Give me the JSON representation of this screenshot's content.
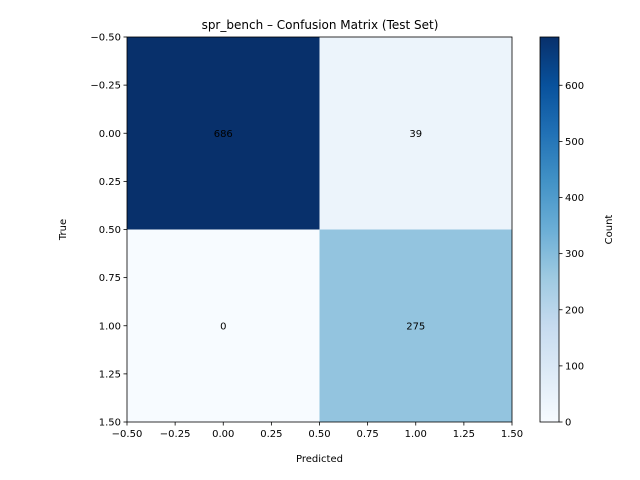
{
  "chart_data": {
    "type": "heatmap",
    "title": "spr_bench – Confusion Matrix (Test Set)",
    "xlabel": "Predicted",
    "ylabel": "True",
    "matrix": [
      [
        686,
        39
      ],
      [
        0,
        275
      ]
    ],
    "xlim": [
      -0.5,
      1.5
    ],
    "ylim": [
      1.5,
      -0.5
    ],
    "x_ticks": [
      "−0.50",
      "−0.25",
      "0.00",
      "0.25",
      "0.50",
      "0.75",
      "1.00",
      "1.25",
      "1.50"
    ],
    "y_ticks": [
      "−0.50",
      "−0.25",
      "0.00",
      "0.25",
      "0.50",
      "0.75",
      "1.00",
      "1.25",
      "1.50"
    ],
    "colorbar": {
      "label": "Count",
      "min": 0,
      "max": 686,
      "ticks": [
        "0",
        "100",
        "200",
        "300",
        "400",
        "500",
        "600"
      ],
      "colormap": "Blues"
    },
    "grid": false
  }
}
